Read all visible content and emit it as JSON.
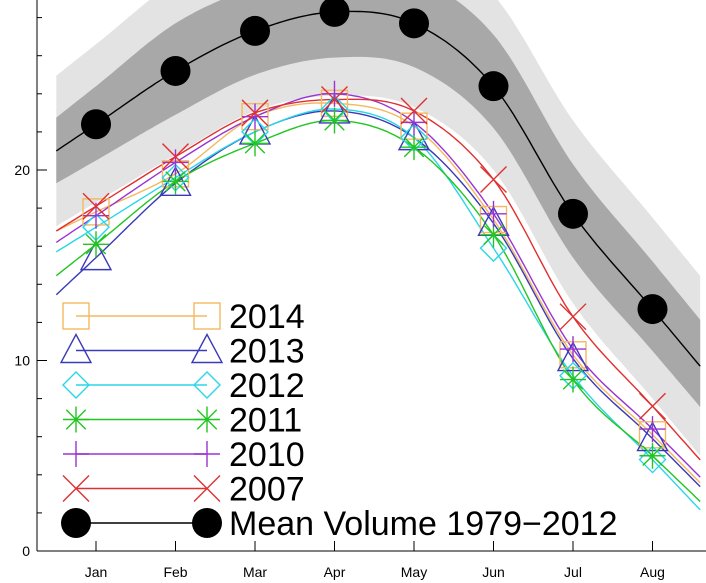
{
  "chart_data": {
    "type": "line",
    "title": "",
    "xlabel": "",
    "ylabel": "",
    "categories": [
      "Jan",
      "Feb",
      "Mar",
      "Apr",
      "May",
      "Jun",
      "Jul",
      "Aug"
    ],
    "y_ticks": [
      "0",
      "10",
      "20"
    ],
    "ylim": [
      0,
      28.5
    ],
    "grid": false,
    "legend_position": "bottom-left",
    "bands": {
      "inner": {
        "color": "#a8a8a8",
        "lower": [
          20.5,
          22.9,
          25.0,
          25.9,
          25.4,
          22.2,
          15.4,
          10.5
        ],
        "upper": [
          24.4,
          27.7,
          29.6,
          30.5,
          30.1,
          27.1,
          20.3,
          15.2
        ]
      },
      "outer": {
        "color": "#e3e3e3",
        "lower": [
          18.3,
          20.8,
          23.1,
          23.9,
          23.3,
          20.0,
          13.0,
          8.0
        ],
        "upper": [
          26.6,
          29.9,
          31.8,
          32.5,
          32.1,
          29.2,
          22.6,
          17.5
        ]
      }
    },
    "series": [
      {
        "name": "2014",
        "marker": "square",
        "color": "#f4b860",
        "values": [
          17.8,
          19.8,
          22.8,
          23.5,
          22.3,
          17.4,
          10.3,
          6.1
        ]
      },
      {
        "name": "2013",
        "marker": "triangle",
        "color": "#3a3ab8",
        "values": [
          15.4,
          19.3,
          22.0,
          23.1,
          21.7,
          17.2,
          10.1,
          5.9
        ]
      },
      {
        "name": "2012",
        "marker": "diamond",
        "color": "#2ad6e8",
        "values": [
          17.0,
          19.6,
          22.0,
          23.2,
          21.7,
          15.9,
          9.2,
          4.8
        ]
      },
      {
        "name": "2011",
        "marker": "asterisk",
        "color": "#22c522",
        "values": [
          16.1,
          19.4,
          21.4,
          22.6,
          21.2,
          16.6,
          9.0,
          5.0
        ]
      },
      {
        "name": "2010",
        "marker": "plus",
        "color": "#9a33d4",
        "values": [
          17.6,
          20.4,
          22.8,
          24.0,
          22.5,
          17.7,
          10.6,
          6.4
        ]
      },
      {
        "name": "2007",
        "marker": "x",
        "color": "#e03030",
        "values": [
          18.1,
          20.7,
          23.0,
          23.7,
          23.1,
          19.5,
          12.3,
          7.6
        ]
      },
      {
        "name": "Mean Volume 1979−2012",
        "marker": "circle",
        "color": "#000000",
        "values": [
          22.4,
          25.2,
          27.3,
          28.3,
          27.7,
          24.4,
          17.7,
          12.7
        ]
      }
    ]
  }
}
